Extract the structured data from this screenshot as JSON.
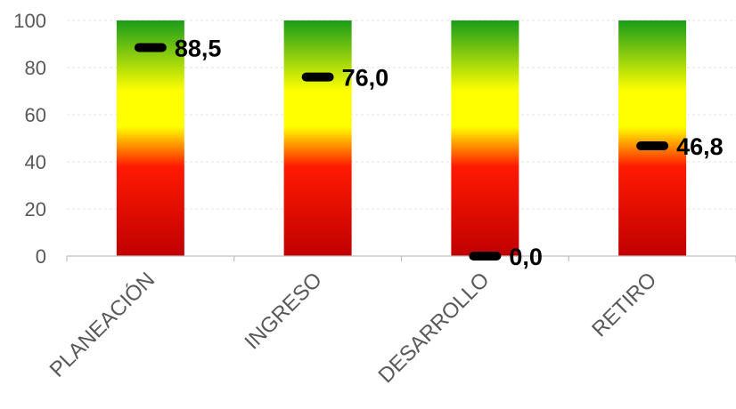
{
  "chart_data": {
    "type": "bar",
    "categories": [
      "PLANEACIÓN",
      "INGRESO",
      "DESARROLLO",
      "RETIRO"
    ],
    "series": [
      {
        "values": [
          88.5,
          76.0,
          0.0,
          46.8
        ]
      }
    ],
    "value_labels": [
      "88,5",
      "76,0",
      "0,0",
      "46,8"
    ],
    "ylim": [
      0,
      100
    ],
    "yticks": [
      0,
      20,
      40,
      60,
      80,
      100
    ],
    "ytick_labels": [
      "0",
      "20",
      "40",
      "60",
      "80",
      "100"
    ],
    "background_band_range": [
      0,
      100
    ],
    "gradient_colors": {
      "top": "#1a9c1a",
      "upper": "#ffff00",
      "middle": "#ff1a00",
      "bottom": "#c00000"
    },
    "marker_color": "#000000",
    "grid": true,
    "legend": "none"
  }
}
